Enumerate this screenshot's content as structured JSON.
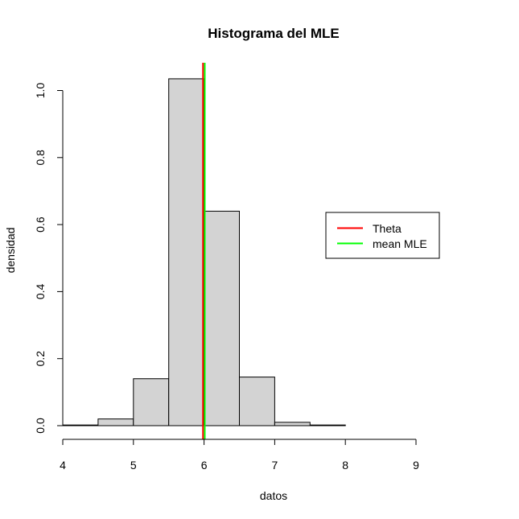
{
  "chart_data": {
    "type": "bar",
    "title": "Histograma del MLE",
    "xlabel": "datos",
    "ylabel": "densidad",
    "xlim": [
      4,
      9
    ],
    "ylim": [
      0,
      1.04
    ],
    "x_ticks": [
      "4",
      "5",
      "6",
      "7",
      "8",
      "9"
    ],
    "y_ticks": [
      "0.0",
      "0.2",
      "0.4",
      "0.6",
      "0.8",
      "1.0"
    ],
    "bins": [
      {
        "x0": 4.0,
        "x1": 4.5,
        "density": 0.002
      },
      {
        "x0": 4.5,
        "x1": 5.0,
        "density": 0.02
      },
      {
        "x0": 5.0,
        "x1": 5.5,
        "density": 0.14
      },
      {
        "x0": 5.5,
        "x1": 6.0,
        "density": 1.035
      },
      {
        "x0": 6.0,
        "x1": 6.5,
        "density": 0.64
      },
      {
        "x0": 6.5,
        "x1": 7.0,
        "density": 0.145
      },
      {
        "x0": 7.0,
        "x1": 7.5,
        "density": 0.01
      },
      {
        "x0": 7.5,
        "x1": 8.0,
        "density": 0.002
      }
    ],
    "bar_fill": "#d3d3d3",
    "vlines": [
      {
        "name": "Theta",
        "x": 5.985,
        "color": "#ff0000"
      },
      {
        "name": "mean MLE",
        "x": 6.01,
        "color": "#00ff00"
      }
    ],
    "legend": {
      "placement": "right",
      "entries": [
        {
          "label": "Theta",
          "color": "#ff0000"
        },
        {
          "label": "mean MLE",
          "color": "#00ff00"
        }
      ]
    },
    "grid": false
  }
}
